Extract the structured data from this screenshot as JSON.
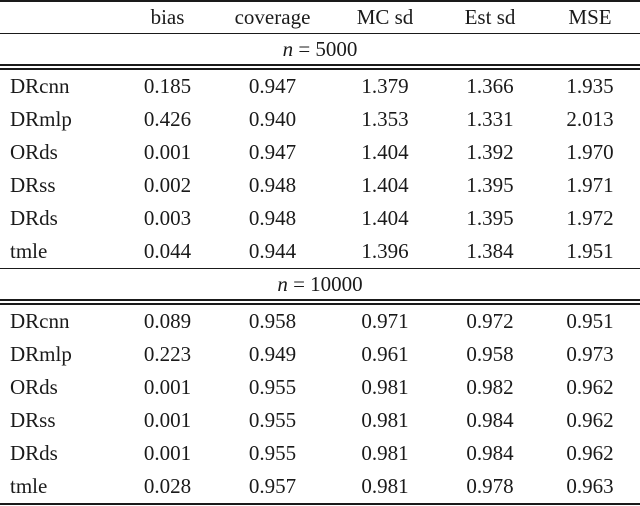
{
  "colors": {
    "ink": "#1a1a1a",
    "background": "#ffffff"
  },
  "table": {
    "columns": [
      "",
      "bias",
      "coverage",
      "MC sd",
      "Est sd",
      "MSE"
    ],
    "sections": [
      {
        "title_var": "n",
        "title_rest": "= 5000",
        "rows": [
          {
            "label": "DRcnn",
            "values": [
              "0.185",
              "0.947",
              "1.379",
              "1.366",
              "1.935"
            ]
          },
          {
            "label": "DRmlp",
            "values": [
              "0.426",
              "0.940",
              "1.353",
              "1.331",
              "2.013"
            ]
          },
          {
            "label": "ORds",
            "values": [
              "0.001",
              "0.947",
              "1.404",
              "1.392",
              "1.970"
            ]
          },
          {
            "label": "DRss",
            "values": [
              "0.002",
              "0.948",
              "1.404",
              "1.395",
              "1.971"
            ]
          },
          {
            "label": "DRds",
            "values": [
              "0.003",
              "0.948",
              "1.404",
              "1.395",
              "1.972"
            ]
          },
          {
            "label": "tmle",
            "values": [
              "0.044",
              "0.944",
              "1.396",
              "1.384",
              "1.951"
            ]
          }
        ]
      },
      {
        "title_var": "n",
        "title_rest": "= 10000",
        "rows": [
          {
            "label": "DRcnn",
            "values": [
              "0.089",
              "0.958",
              "0.971",
              "0.972",
              "0.951"
            ]
          },
          {
            "label": "DRmlp",
            "values": [
              "0.223",
              "0.949",
              "0.961",
              "0.958",
              "0.973"
            ]
          },
          {
            "label": "ORds",
            "values": [
              "0.001",
              "0.955",
              "0.981",
              "0.982",
              "0.962"
            ]
          },
          {
            "label": "DRss",
            "values": [
              "0.001",
              "0.955",
              "0.981",
              "0.984",
              "0.962"
            ]
          },
          {
            "label": "DRds",
            "values": [
              "0.001",
              "0.955",
              "0.981",
              "0.984",
              "0.962"
            ]
          },
          {
            "label": "tmle",
            "values": [
              "0.028",
              "0.957",
              "0.981",
              "0.978",
              "0.963"
            ]
          }
        ]
      }
    ]
  }
}
